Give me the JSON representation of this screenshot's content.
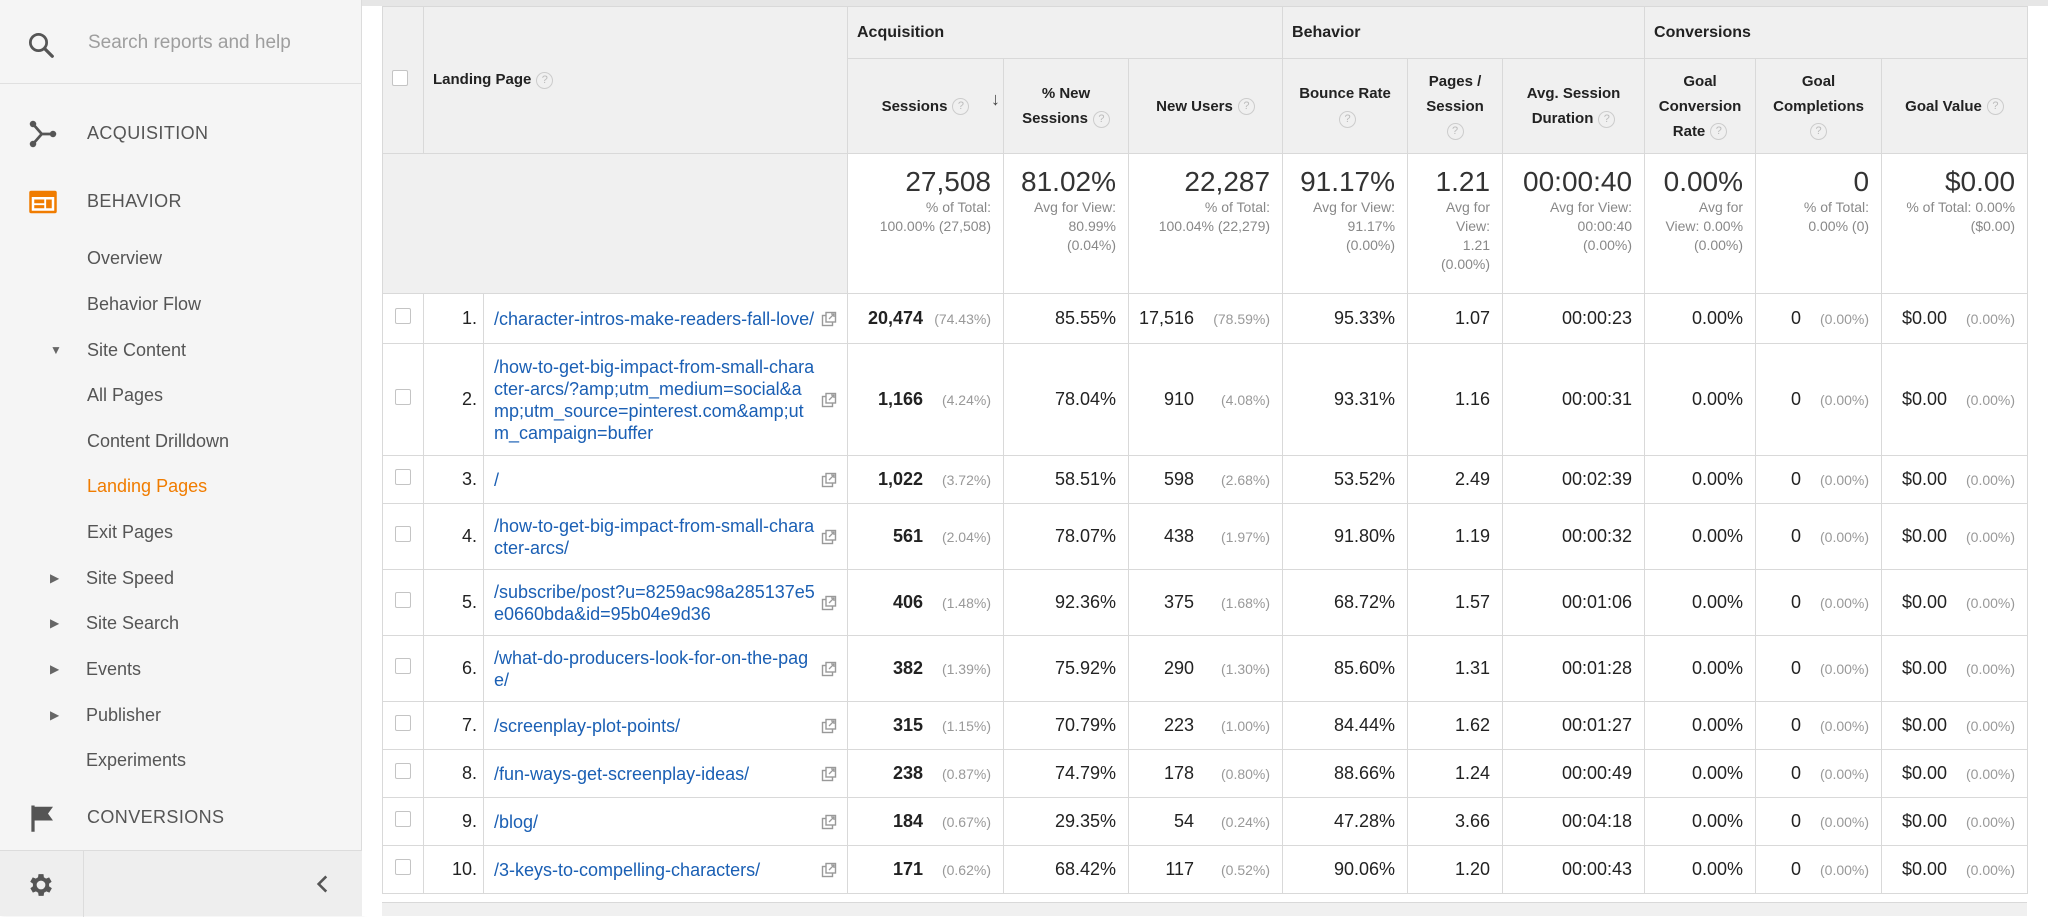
{
  "sidebar": {
    "search_placeholder": "Search reports and help",
    "sections": {
      "acquisition": "ACQUISITION",
      "behavior": "BEHAVIOR",
      "conversions": "CONVERSIONS"
    },
    "items": [
      {
        "label": "Overview"
      },
      {
        "label": "Behavior Flow"
      },
      {
        "label": "Site Content"
      },
      {
        "label": "All Pages"
      },
      {
        "label": "Content Drilldown"
      },
      {
        "label": "Landing Pages"
      },
      {
        "label": "Exit Pages"
      },
      {
        "label": "Site Speed"
      },
      {
        "label": "Site Search"
      },
      {
        "label": "Events"
      },
      {
        "label": "Publisher"
      },
      {
        "label": "Experiments"
      }
    ],
    "active_color": "#f07c00"
  },
  "table": {
    "groups": {
      "acquisition": "Acquisition",
      "behavior": "Behavior",
      "conversions": "Conversions"
    },
    "columns": {
      "landing_page": "Landing Page",
      "sessions": "Sessions",
      "new_sessions_1": "% New",
      "new_sessions_2": "Sessions",
      "new_users": "New Users",
      "bounce_1": "Bounce Rate",
      "pages_1": "Pages /",
      "pages_2": "Session",
      "duration_1": "Avg. Session",
      "duration_2": "Duration",
      "gcr_1": "Goal",
      "gcr_2": "Conversion",
      "gcr_3": "Rate",
      "gc_1": "Goal",
      "gc_2": "Completions",
      "goal_value": "Goal Value"
    },
    "totals": {
      "sessions": {
        "big": "27,508",
        "l1": "% of Total:",
        "l2": "100.00% (27,508)"
      },
      "new_sessions": {
        "big": "81.02%",
        "l1": "Avg for View:",
        "l2": "80.99%",
        "l3": "(0.04%)"
      },
      "new_users": {
        "big": "22,287",
        "l1": "% of Total:",
        "l2": "100.04% (22,279)"
      },
      "bounce": {
        "big": "91.17%",
        "l1": "Avg for View:",
        "l2": "91.17%",
        "l3": "(0.00%)"
      },
      "pages": {
        "big": "1.21",
        "l1": "Avg for",
        "l2": "View:",
        "l3": "1.21",
        "l4": "(0.00%)"
      },
      "duration": {
        "big": "00:00:40",
        "l1": "Avg for View:",
        "l2": "00:00:40",
        "l3": "(0.00%)"
      },
      "gcr": {
        "big": "0.00%",
        "l1": "Avg for",
        "l2": "View: 0.00%",
        "l3": "(0.00%)"
      },
      "gc": {
        "big": "0",
        "l1": "% of Total:",
        "l2": "0.00% (0)"
      },
      "gv": {
        "big": "$0.00",
        "l1": "% of Total: 0.00%",
        "l2": "($0.00)"
      }
    },
    "rows": [
      {
        "idx": "1.",
        "page": "/character-intros-make-readers-fall-love/",
        "sessions": "20,474",
        "sessions_pct": "(74.43%)",
        "new_sessions": "85.55%",
        "new_users": "17,516",
        "new_users_pct": "(78.59%)",
        "bounce": "95.33%",
        "pages": "1.07",
        "duration": "00:00:23",
        "gcr": "0.00%",
        "gc": "0",
        "gc_pct": "(0.00%)",
        "gv": "$0.00",
        "gv_pct": "(0.00%)"
      },
      {
        "idx": "2.",
        "page": "/how-to-get-big-impact-from-small-character-arcs/?amp;utm_medium=social&amp;utm_source=pinterest.com&amp;utm_campaign=buffer",
        "sessions": "1,166",
        "sessions_pct": "(4.24%)",
        "new_sessions": "78.04%",
        "new_users": "910",
        "new_users_pct": "(4.08%)",
        "bounce": "93.31%",
        "pages": "1.16",
        "duration": "00:00:31",
        "gcr": "0.00%",
        "gc": "0",
        "gc_pct": "(0.00%)",
        "gv": "$0.00",
        "gv_pct": "(0.00%)"
      },
      {
        "idx": "3.",
        "page": "/",
        "sessions": "1,022",
        "sessions_pct": "(3.72%)",
        "new_sessions": "58.51%",
        "new_users": "598",
        "new_users_pct": "(2.68%)",
        "bounce": "53.52%",
        "pages": "2.49",
        "duration": "00:02:39",
        "gcr": "0.00%",
        "gc": "0",
        "gc_pct": "(0.00%)",
        "gv": "$0.00",
        "gv_pct": "(0.00%)"
      },
      {
        "idx": "4.",
        "page": "/how-to-get-big-impact-from-small-character-arcs/",
        "sessions": "561",
        "sessions_pct": "(2.04%)",
        "new_sessions": "78.07%",
        "new_users": "438",
        "new_users_pct": "(1.97%)",
        "bounce": "91.80%",
        "pages": "1.19",
        "duration": "00:00:32",
        "gcr": "0.00%",
        "gc": "0",
        "gc_pct": "(0.00%)",
        "gv": "$0.00",
        "gv_pct": "(0.00%)"
      },
      {
        "idx": "5.",
        "page": "/subscribe/post?u=8259ac98a285137e5e0660bda&id=95b04e9d36",
        "sessions": "406",
        "sessions_pct": "(1.48%)",
        "new_sessions": "92.36%",
        "new_users": "375",
        "new_users_pct": "(1.68%)",
        "bounce": "68.72%",
        "pages": "1.57",
        "duration": "00:01:06",
        "gcr": "0.00%",
        "gc": "0",
        "gc_pct": "(0.00%)",
        "gv": "$0.00",
        "gv_pct": "(0.00%)"
      },
      {
        "idx": "6.",
        "page": "/what-do-producers-look-for-on-the-page/",
        "sessions": "382",
        "sessions_pct": "(1.39%)",
        "new_sessions": "75.92%",
        "new_users": "290",
        "new_users_pct": "(1.30%)",
        "bounce": "85.60%",
        "pages": "1.31",
        "duration": "00:01:28",
        "gcr": "0.00%",
        "gc": "0",
        "gc_pct": "(0.00%)",
        "gv": "$0.00",
        "gv_pct": "(0.00%)"
      },
      {
        "idx": "7.",
        "page": "/screenplay-plot-points/",
        "sessions": "315",
        "sessions_pct": "(1.15%)",
        "new_sessions": "70.79%",
        "new_users": "223",
        "new_users_pct": "(1.00%)",
        "bounce": "84.44%",
        "pages": "1.62",
        "duration": "00:01:27",
        "gcr": "0.00%",
        "gc": "0",
        "gc_pct": "(0.00%)",
        "gv": "$0.00",
        "gv_pct": "(0.00%)"
      },
      {
        "idx": "8.",
        "page": "/fun-ways-get-screenplay-ideas/",
        "sessions": "238",
        "sessions_pct": "(0.87%)",
        "new_sessions": "74.79%",
        "new_users": "178",
        "new_users_pct": "(0.80%)",
        "bounce": "88.66%",
        "pages": "1.24",
        "duration": "00:00:49",
        "gcr": "0.00%",
        "gc": "0",
        "gc_pct": "(0.00%)",
        "gv": "$0.00",
        "gv_pct": "(0.00%)"
      },
      {
        "idx": "9.",
        "page": "/blog/",
        "sessions": "184",
        "sessions_pct": "(0.67%)",
        "new_sessions": "29.35%",
        "new_users": "54",
        "new_users_pct": "(0.24%)",
        "bounce": "47.28%",
        "pages": "3.66",
        "duration": "00:04:18",
        "gcr": "0.00%",
        "gc": "0",
        "gc_pct": "(0.00%)",
        "gv": "$0.00",
        "gv_pct": "(0.00%)"
      },
      {
        "idx": "10.",
        "page": "/3-keys-to-compelling-characters/",
        "sessions": "171",
        "sessions_pct": "(0.62%)",
        "new_sessions": "68.42%",
        "new_users": "117",
        "new_users_pct": "(0.52%)",
        "bounce": "90.06%",
        "pages": "1.20",
        "duration": "00:00:43",
        "gcr": "0.00%",
        "gc": "0",
        "gc_pct": "(0.00%)",
        "gv": "$0.00",
        "gv_pct": "(0.00%)"
      }
    ],
    "link_color": "#1a5fb4"
  }
}
